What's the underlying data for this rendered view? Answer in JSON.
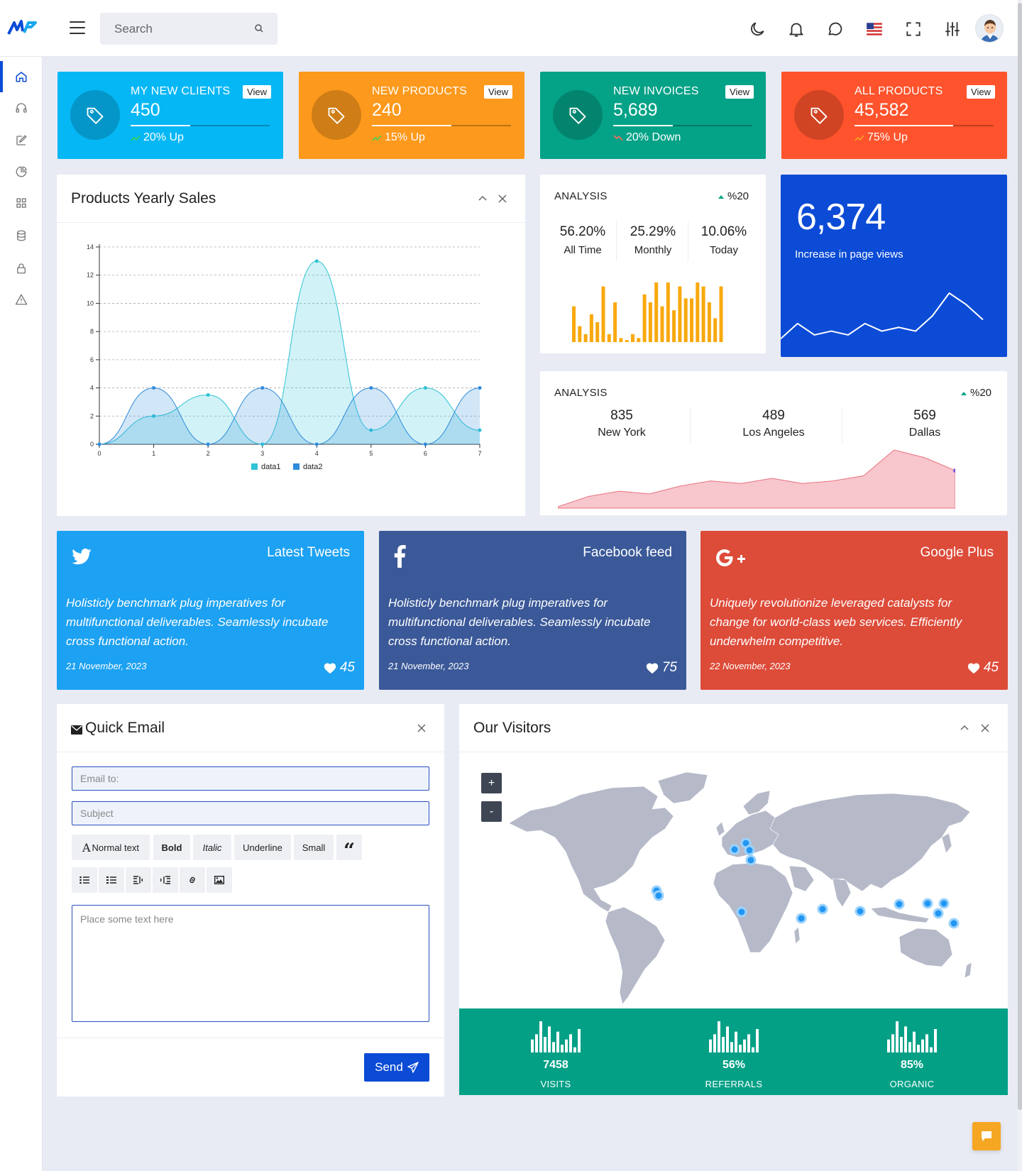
{
  "header": {
    "search_placeholder": "Search"
  },
  "sidebar": {
    "items": [
      "home-icon",
      "headset-icon",
      "edit-icon",
      "pie-chart-icon",
      "grid-icon",
      "database-icon",
      "lock-icon",
      "warning-icon"
    ]
  },
  "stats": [
    {
      "label": "MY NEW CLIENTS",
      "value": "450",
      "change": "20% Up",
      "view": "View",
      "color": "#06b7f5",
      "progress": 0.43
    },
    {
      "label": "NEW PRODUCTS",
      "value": "240",
      "change": "15% Up",
      "view": "View",
      "color": "#fd991c",
      "progress": 0.57
    },
    {
      "label": "NEW INVOICES",
      "value": "5,689",
      "change": "20% Down",
      "view": "View",
      "color": "#04a287",
      "progress": 0.43
    },
    {
      "label": "ALL PRODUCTS",
      "value": "45,582",
      "change": "75% Up",
      "view": "View",
      "color": "#fe532c",
      "progress": 0.71
    }
  ],
  "yearly_sales": {
    "title": "Products Yearly Sales"
  },
  "chart_data": [
    {
      "type": "area",
      "title": "Products Yearly Sales",
      "x": [
        0,
        1,
        2,
        3,
        4,
        5,
        6,
        7
      ],
      "series": [
        {
          "name": "data1",
          "values": [
            0,
            2,
            3.5,
            0,
            13,
            1,
            4,
            1
          ],
          "color": "#2ec3d5"
        },
        {
          "name": "data2",
          "values": [
            0,
            4,
            0,
            4,
            0,
            4,
            0,
            4
          ],
          "color": "#2f8bdb"
        }
      ],
      "ylim": [
        0,
        14
      ],
      "yticks": [
        0,
        2,
        4,
        6,
        8,
        10,
        12,
        14
      ],
      "grid": true,
      "legend": "bottom"
    },
    {
      "type": "bar",
      "values": [
        9,
        4,
        2,
        7,
        5,
        14,
        2,
        10,
        1,
        0.5,
        2,
        1,
        12,
        10,
        15,
        9,
        15,
        8,
        14,
        11,
        11,
        15,
        14,
        10,
        6,
        14
      ],
      "color": "#f8a90e"
    },
    {
      "type": "line",
      "values": [
        2,
        6,
        3,
        4,
        3,
        6,
        4,
        5,
        4,
        8,
        14,
        11,
        7
      ],
      "color": "#ffffff"
    },
    {
      "type": "area",
      "values": [
        0,
        2,
        3,
        2.5,
        4,
        5,
        4.5,
        5.5,
        4.5,
        5,
        6,
        11,
        9.5,
        7
      ],
      "color": "#f4a8b2"
    },
    {
      "type": "bar",
      "values": [
        5,
        7,
        12,
        6,
        10,
        4,
        8,
        3,
        5,
        7,
        2,
        9
      ],
      "color": "#ffffff"
    }
  ],
  "analysis_1": {
    "title": "ANALYSIS",
    "badge": "%20",
    "items": [
      {
        "value": "56.20%",
        "label": "All Time"
      },
      {
        "value": "25.29%",
        "label": "Monthly"
      },
      {
        "value": "10.06%",
        "label": "Today"
      }
    ]
  },
  "page_views": {
    "value": "6,374",
    "label": "Increase in page views",
    "color": "#0b4bd6"
  },
  "analysis_2": {
    "title": "ANALYSIS",
    "badge": "%20",
    "items": [
      {
        "value": "835",
        "label": "New York"
      },
      {
        "value": "489",
        "label": "Los Angeles"
      },
      {
        "value": "569",
        "label": "Dallas"
      }
    ]
  },
  "social": [
    {
      "title": "Latest Tweets",
      "icon": "twitter-icon",
      "text": "Holisticly benchmark plug imperatives for multifunctional deliverables. Seamlessly incubate cross functional action.",
      "date": "21 November, 2023",
      "likes": "45",
      "color": "#1da1f2"
    },
    {
      "title": "Facebook feed",
      "icon": "facebook-icon",
      "text": "Holisticly benchmark plug imperatives for multifunctional deliverables. Seamlessly incubate cross functional action.",
      "date": "21 November, 2023",
      "likes": "75",
      "color": "#3b5998"
    },
    {
      "title": "Google Plus",
      "icon": "google-plus-icon",
      "text": "Uniquely revolutionize leveraged catalysts for change for world-class web services. Efficiently underwhelm competitive.",
      "date": "22 November, 2023",
      "likes": "45",
      "color": "#dd4b39"
    }
  ],
  "quick_email": {
    "title": "Quick Email",
    "email_placeholder": "Email to:",
    "subject_placeholder": "Subject",
    "body_placeholder": "Place some text here",
    "fmt": {
      "normal_glyph": "A",
      "normal": "Normal text",
      "bold": "Bold",
      "italic": "Italic",
      "underline": "Underline",
      "small": "Small",
      "quote": "“"
    },
    "send": "Send"
  },
  "visitors": {
    "title": "Our Visitors",
    "zoom_in": "+",
    "zoom_out": "-",
    "stats": [
      {
        "value": "7458",
        "label": "VISITS"
      },
      {
        "value": "56%",
        "label": "REFERRALS"
      },
      {
        "value": "85%",
        "label": "ORGANIC"
      }
    ],
    "footer_color": "#03a086"
  }
}
